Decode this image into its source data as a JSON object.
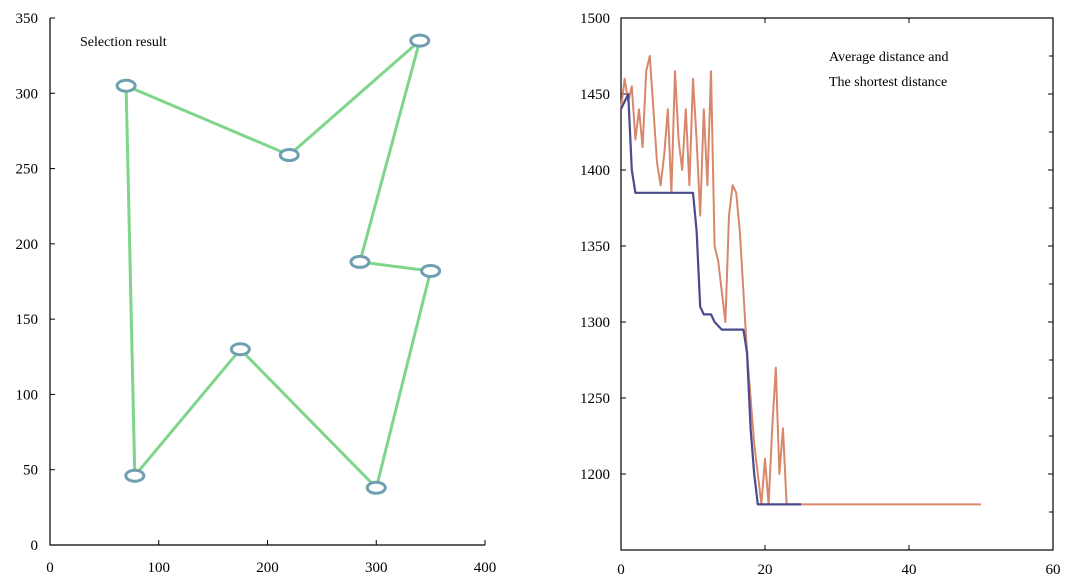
{
  "chart_data": [
    {
      "type": "line",
      "annotation": "Selection result",
      "xlim": [
        0,
        400
      ],
      "ylim": [
        0,
        350
      ],
      "xticks": [
        0,
        100,
        200,
        300,
        400
      ],
      "yticks": [
        0,
        50,
        100,
        150,
        200,
        250,
        300,
        350
      ],
      "grid": false,
      "line_color": "#7fd68a",
      "marker_color": "#6f9fb0",
      "route": [
        {
          "x": 70,
          "y": 305
        },
        {
          "x": 220,
          "y": 259
        },
        {
          "x": 340,
          "y": 335
        },
        {
          "x": 285,
          "y": 188
        },
        {
          "x": 350,
          "y": 182
        },
        {
          "x": 300,
          "y": 38
        },
        {
          "x": 175,
          "y": 130
        },
        {
          "x": 78,
          "y": 46
        },
        {
          "x": 70,
          "y": 305
        }
      ]
    },
    {
      "type": "line",
      "annotation_lines": [
        "Average distance and",
        "The shortest distance"
      ],
      "xlim": [
        0,
        60
      ],
      "ylim": [
        1150,
        1500
      ],
      "xticks": [
        0,
        20,
        40,
        60
      ],
      "yticks": [
        1200,
        1250,
        1300,
        1350,
        1400,
        1450,
        1500
      ],
      "grid": false,
      "series": [
        {
          "color": "#d9876c",
          "x": [
            0,
            0.5,
            1,
            1.5,
            2,
            2.5,
            3,
            3.5,
            4,
            4.5,
            5,
            5.5,
            6,
            6.5,
            7,
            7.5,
            8,
            8.5,
            9,
            9.5,
            10,
            10.5,
            11,
            11.5,
            12,
            12.5,
            13,
            13.5,
            14,
            14.5,
            15,
            15.5,
            16,
            16.5,
            17,
            17.5,
            18,
            18.5,
            19,
            19.5,
            20,
            20.5,
            21,
            21.5,
            22,
            22.5,
            23,
            24,
            30,
            40,
            50
          ],
          "y": [
            1440,
            1460,
            1445,
            1455,
            1420,
            1440,
            1415,
            1465,
            1475,
            1440,
            1405,
            1390,
            1410,
            1440,
            1385,
            1465,
            1420,
            1400,
            1440,
            1390,
            1460,
            1420,
            1370,
            1440,
            1390,
            1465,
            1350,
            1340,
            1320,
            1300,
            1370,
            1390,
            1385,
            1360,
            1320,
            1280,
            1250,
            1220,
            1200,
            1180,
            1210,
            1180,
            1230,
            1270,
            1200,
            1230,
            1180,
            1180,
            1180,
            1180,
            1180
          ]
        },
        {
          "color": "#4a4a8c",
          "x": [
            0,
            0.5,
            1,
            1.5,
            2,
            3,
            4,
            5,
            6,
            7,
            8,
            9,
            10,
            10.5,
            11,
            11.5,
            12,
            12.5,
            13,
            14,
            15,
            16,
            17,
            17.5,
            18,
            18.5,
            19,
            20,
            22,
            25
          ],
          "y": [
            1440,
            1445,
            1450,
            1400,
            1385,
            1385,
            1385,
            1385,
            1385,
            1385,
            1385,
            1385,
            1385,
            1360,
            1310,
            1305,
            1305,
            1305,
            1300,
            1295,
            1295,
            1295,
            1295,
            1280,
            1230,
            1200,
            1180,
            1180,
            1180,
            1180
          ]
        }
      ]
    }
  ]
}
